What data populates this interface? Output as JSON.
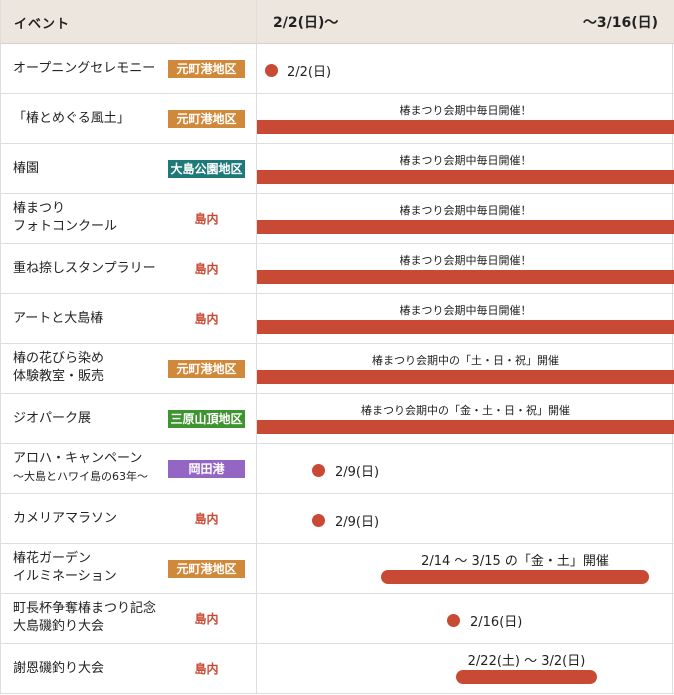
{
  "header": {
    "event": "イベント",
    "start": "2/2(日)～",
    "end": "～3/16(日)"
  },
  "colors": {
    "accent": "#c94a34",
    "motomachi": "#d0883a",
    "oshima_park": "#1e7a7a",
    "mihara": "#3f9330",
    "okata": "#9466c4"
  },
  "rows": [
    {
      "name1": "オープニングセレモニー",
      "name2": "",
      "tag": "元町港地区",
      "date": "2/2(日)"
    },
    {
      "name1": "「椿とめぐる風土」",
      "name2": "",
      "tag": "元町港地区",
      "note": "椿まつり会期中毎日開催！"
    },
    {
      "name1": "椿園",
      "name2": "",
      "tag": "大島公園地区",
      "note": "椿まつり会期中毎日開催！"
    },
    {
      "name1": "椿まつり",
      "name2": "フォトコンクール",
      "tag": "島内",
      "note": "椿まつり会期中毎日開催！"
    },
    {
      "name1": "重ね捺しスタンプラリー",
      "name2": "",
      "tag": "島内",
      "note": "椿まつり会期中毎日開催！"
    },
    {
      "name1": "アートと大島椿",
      "name2": "",
      "tag": "島内",
      "note": "椿まつり会期中毎日開催！"
    },
    {
      "name1": "椿の花びら染め",
      "name2": "体験教室・販売",
      "tag": "元町港地区",
      "note": "椿まつり会期中の「土・日・祝」開催"
    },
    {
      "name1": "ジオパーク展",
      "name2": "",
      "tag": "三原山頂地区",
      "note": "椿まつり会期中の「金・土・日・祝」開催"
    },
    {
      "name1": "アロハ・キャンペーン",
      "name2": "～大島とハワイ島の63年～",
      "tag": "岡田港",
      "date": "2/9(日)"
    },
    {
      "name1": "カメリアマラソン",
      "name2": "",
      "tag": "島内",
      "date": "2/9(日)"
    },
    {
      "name1": "椿花ガーデン",
      "name2": "イルミネーション",
      "tag": "元町港地区",
      "note": "2/14 ～ 3/15 の「金・土」開催"
    },
    {
      "name1": "町長杯争奪椿まつり記念",
      "name2": "大島磯釣り大会",
      "tag": "島内",
      "date": "2/16(日)"
    },
    {
      "name1": "謝恩磯釣り大会",
      "name2": "",
      "tag": "島内",
      "note": "2/22(土) ～ 3/2(日)"
    }
  ]
}
